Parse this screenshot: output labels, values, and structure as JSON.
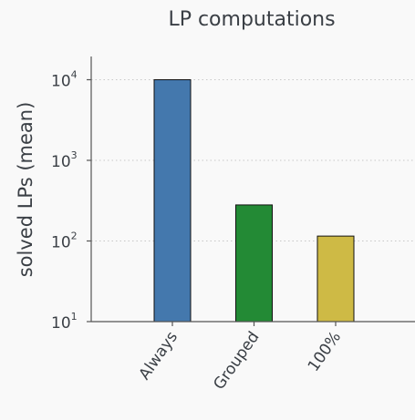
{
  "chart_data": {
    "type": "bar",
    "title": "LP computations",
    "ylabel": "solved LPs (mean)",
    "xlabel": "",
    "y_scale": "log",
    "ylim": [
      10,
      20000
    ],
    "y_ticks": [
      {
        "value": 10,
        "base": "10",
        "exp": "1"
      },
      {
        "value": 100,
        "base": "10",
        "exp": "2"
      },
      {
        "value": 1000,
        "base": "10",
        "exp": "3"
      },
      {
        "value": 10000,
        "base": "10",
        "exp": "4"
      }
    ],
    "grid": true,
    "categories": [
      "Always",
      "Grouped",
      "100%"
    ],
    "values": [
      10000,
      280,
      115
    ],
    "colors": [
      "#4478ad",
      "#238a35",
      "#ceba45"
    ]
  }
}
